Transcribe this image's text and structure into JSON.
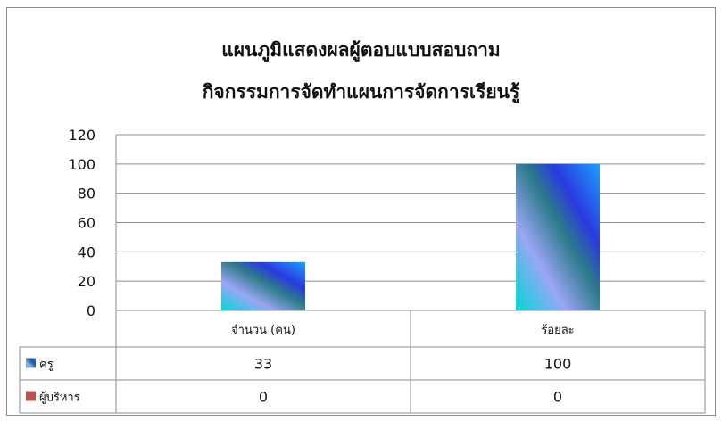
{
  "chart_data": {
    "type": "bar",
    "title": [
      "แผนภูมิแสดงผลผู้ตอบแบบสอบถาม",
      "กิจกรรมการจัดทำแผนการจัดการเรียนรู้"
    ],
    "categories": [
      "จำนวน (คน)",
      "ร้อยละ"
    ],
    "series": [
      {
        "name": "ครู",
        "values": [
          33,
          100
        ],
        "legend_color": "#3355dd"
      },
      {
        "name": "ผู้บริหาร",
        "values": [
          0,
          0
        ],
        "legend_color": "#c0504d"
      }
    ],
    "ylim": [
      0,
      120
    ],
    "yticks": [
      0,
      20,
      40,
      60,
      80,
      100,
      120
    ],
    "grid": true,
    "legend_placement": "data-table",
    "data_table": true
  }
}
